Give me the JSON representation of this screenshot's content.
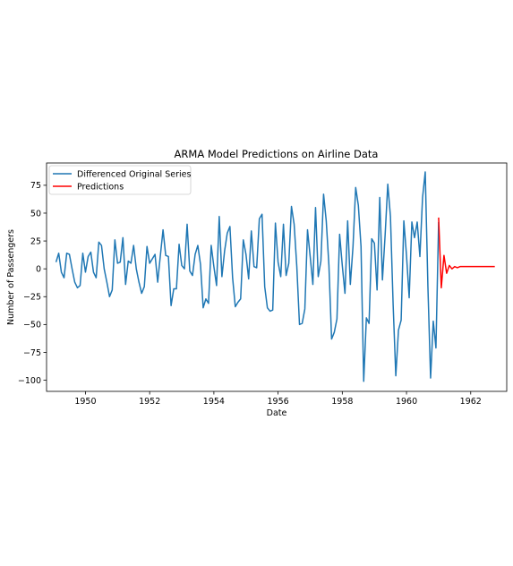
{
  "chart_data": {
    "type": "line",
    "title": "ARMA Model Predictions on Airline Data",
    "xlabel": "Date",
    "ylabel": "Number of Passengers",
    "xlim": [
      "1948-10-15",
      "1963-02-15"
    ],
    "ylim": [
      -110,
      95
    ],
    "x_ticks": [
      {
        "date": "1950-01-01",
        "label": "1950"
      },
      {
        "date": "1952-01-01",
        "label": "1952"
      },
      {
        "date": "1954-01-01",
        "label": "1954"
      },
      {
        "date": "1956-01-01",
        "label": "1956"
      },
      {
        "date": "1958-01-01",
        "label": "1958"
      },
      {
        "date": "1960-01-01",
        "label": "1960"
      },
      {
        "date": "1962-01-01",
        "label": "1962"
      }
    ],
    "y_ticks": [
      75,
      50,
      25,
      0,
      -25,
      -50,
      -75,
      -100
    ],
    "y_tick_labels": [
      "75",
      "50",
      "25",
      "0",
      "−25",
      "−50",
      "−75",
      "−100"
    ],
    "grid": false,
    "legend_position": "top-left",
    "series": [
      {
        "name": "Differenced Original Series",
        "color": "#1f77b4",
        "start": "1949-02",
        "values": [
          6,
          14,
          -3,
          -8,
          14,
          13,
          0,
          -12,
          -17,
          -15,
          14,
          -3,
          11,
          15,
          -3,
          -8,
          24,
          21,
          0,
          -12,
          -25,
          -19,
          26,
          5,
          6,
          28,
          -14,
          7,
          5,
          21,
          0,
          -12,
          -22,
          -16,
          20,
          5,
          9,
          13,
          -12,
          12,
          35,
          12,
          11,
          -33,
          -18,
          -18,
          22,
          3,
          0,
          40,
          -2,
          -6,
          13,
          21,
          4,
          -35,
          -27,
          -31,
          21,
          2,
          -15,
          47,
          -7,
          16,
          32,
          38,
          -8,
          -34,
          -30,
          -27,
          26,
          13,
          -9,
          34,
          2,
          1,
          45,
          49,
          -16,
          -35,
          -38,
          -37,
          41,
          6,
          -7,
          40,
          -6,
          5,
          56,
          40,
          2,
          -50,
          -49,
          -36,
          35,
          11,
          -14,
          55,
          -7,
          7,
          67,
          43,
          3,
          -63,
          -57,
          -45,
          31,
          3,
          -22,
          43,
          -14,
          20,
          73,
          57,
          20,
          -101,
          -44,
          -49,
          27,
          23,
          -19,
          64,
          -10,
          30,
          76,
          47,
          -32,
          -96,
          -55,
          -46,
          43,
          12,
          -26,
          42,
          28,
          42,
          11,
          64,
          87,
          -16,
          -98,
          -47,
          -71,
          42
        ]
      },
      {
        "name": "Predictions",
        "color": "#ff0000",
        "start": "1961-01",
        "values": [
          46,
          -17,
          12,
          -4,
          3,
          0,
          2,
          1,
          2,
          2,
          2,
          2,
          2,
          2,
          2,
          2,
          2,
          2,
          2,
          2,
          2,
          2
        ]
      }
    ]
  }
}
